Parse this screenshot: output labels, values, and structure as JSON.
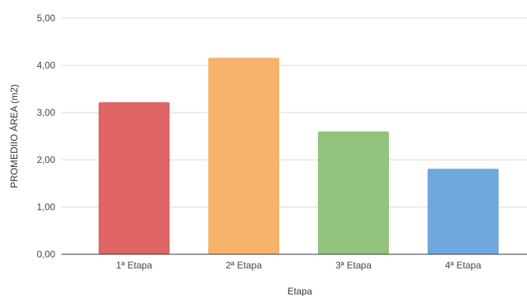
{
  "chart_data": {
    "type": "bar",
    "title": "",
    "xlabel": "Etapa",
    "ylabel": "PROMEDIIO ÁREA (m2)",
    "categories": [
      "1ª Etapa",
      "2ª Etapa",
      "3ª Etapa",
      "4ª Etapa"
    ],
    "values": [
      3.22,
      4.16,
      2.6,
      1.81
    ],
    "ylim": [
      0,
      5
    ],
    "yticks": [
      "0,00",
      "1,00",
      "2,00",
      "3,00",
      "4,00",
      "5,00"
    ],
    "colors": [
      "#e06666",
      "#f6b26b",
      "#93c47d",
      "#6fa8dc"
    ],
    "grid": true,
    "legend": "none"
  }
}
